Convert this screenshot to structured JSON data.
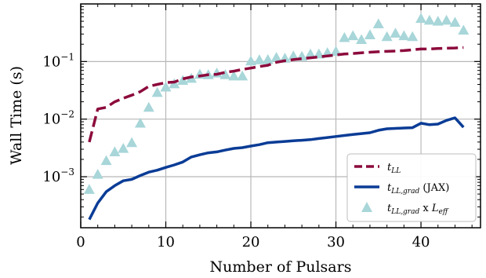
{
  "chart_data": {
    "type": "line",
    "title": "",
    "xlabel": "Number of Pulsars",
    "ylabel": "Wall Time (s)",
    "xlim": [
      0,
      47
    ],
    "ylim": [
      0.00013,
      1.0
    ],
    "yscale": "log",
    "grid": true,
    "legend_position": "bottom-right",
    "x_ticks": [
      {
        "value": 0,
        "label": "0"
      },
      {
        "value": 10,
        "label": "10"
      },
      {
        "value": 20,
        "label": "20"
      },
      {
        "value": 30,
        "label": "30"
      },
      {
        "value": 40,
        "label": "40"
      }
    ],
    "y_ticks": [
      {
        "value": 0.001,
        "base": "10",
        "exp": "−3"
      },
      {
        "value": 0.01,
        "base": "10",
        "exp": "−2"
      },
      {
        "value": 0.1,
        "base": "10",
        "exp": "−1"
      }
    ],
    "series": [
      {
        "name_main": "t",
        "name_sub": "LL",
        "name_suffix": "",
        "name_extra_main": "",
        "name_extra_sub": "",
        "style": "dashed-line",
        "color": "#8c0a3c",
        "x": [
          1,
          2,
          3,
          4,
          5,
          6,
          7,
          8,
          9,
          10,
          11,
          12,
          13,
          14,
          15,
          16,
          17,
          18,
          19,
          20,
          21,
          22,
          23,
          24,
          25,
          26,
          27,
          28,
          29,
          30,
          31,
          32,
          33,
          34,
          35,
          36,
          37,
          38,
          39,
          40,
          41,
          42,
          43,
          44,
          45
        ],
        "values": [
          0.004,
          0.015,
          0.016,
          0.02,
          0.023,
          0.026,
          0.03,
          0.037,
          0.04,
          0.043,
          0.044,
          0.05,
          0.054,
          0.056,
          0.059,
          0.06,
          0.065,
          0.068,
          0.073,
          0.077,
          0.082,
          0.086,
          0.097,
          0.103,
          0.108,
          0.112,
          0.116,
          0.12,
          0.125,
          0.13,
          0.135,
          0.138,
          0.142,
          0.145,
          0.148,
          0.15,
          0.152,
          0.155,
          0.16,
          0.165,
          0.165,
          0.168,
          0.17,
          0.172,
          0.175
        ]
      },
      {
        "name_main": "t",
        "name_sub": "LL,grad",
        "name_suffix": " (JAX)",
        "name_extra_main": "",
        "name_extra_sub": "",
        "style": "solid-line",
        "color": "#0a3c96",
        "x": [
          1,
          2,
          3,
          4,
          5,
          6,
          7,
          8,
          9,
          10,
          11,
          12,
          13,
          14,
          15,
          16,
          17,
          18,
          19,
          20,
          21,
          22,
          23,
          24,
          25,
          26,
          27,
          28,
          29,
          30,
          31,
          32,
          33,
          34,
          35,
          36,
          37,
          38,
          39,
          40,
          41,
          42,
          43,
          44,
          45
        ],
        "values": [
          0.00018,
          0.00035,
          0.00055,
          0.0007,
          0.00085,
          0.0009,
          0.00105,
          0.0012,
          0.0013,
          0.00145,
          0.0016,
          0.0018,
          0.0022,
          0.0024,
          0.0026,
          0.0027,
          0.0029,
          0.0031,
          0.0032,
          0.0034,
          0.0036,
          0.0039,
          0.004,
          0.0041,
          0.0042,
          0.0043,
          0.0044,
          0.0046,
          0.0048,
          0.005,
          0.0052,
          0.0054,
          0.0056,
          0.0058,
          0.0064,
          0.0068,
          0.0069,
          0.007,
          0.0071,
          0.0085,
          0.008,
          0.0082,
          0.0095,
          0.0105,
          0.0072
        ]
      },
      {
        "name_main": "t",
        "name_sub": "LL,grad",
        "name_suffix": " x ",
        "name_extra_main": "L",
        "name_extra_sub": "eff",
        "style": "triangle-markers",
        "color": "#a8d6d9",
        "x": [
          1,
          2,
          3,
          4,
          5,
          6,
          7,
          8,
          9,
          10,
          11,
          12,
          13,
          14,
          15,
          16,
          17,
          18,
          19,
          20,
          21,
          22,
          23,
          24,
          25,
          26,
          27,
          28,
          29,
          30,
          31,
          32,
          33,
          34,
          35,
          36,
          37,
          38,
          39,
          40,
          41,
          42,
          43,
          44,
          45
        ],
        "values": [
          0.0006,
          0.0011,
          0.0019,
          0.0027,
          0.0031,
          0.0039,
          0.0085,
          0.016,
          0.029,
          0.036,
          0.041,
          0.047,
          0.051,
          0.06,
          0.059,
          0.063,
          0.059,
          0.056,
          0.056,
          0.102,
          0.107,
          0.108,
          0.118,
          0.114,
          0.125,
          0.123,
          0.135,
          0.135,
          0.142,
          0.15,
          0.26,
          0.28,
          0.24,
          0.29,
          0.45,
          0.27,
          0.31,
          0.28,
          0.27,
          0.56,
          0.52,
          0.5,
          0.52,
          0.48,
          0.35
        ]
      }
    ]
  }
}
